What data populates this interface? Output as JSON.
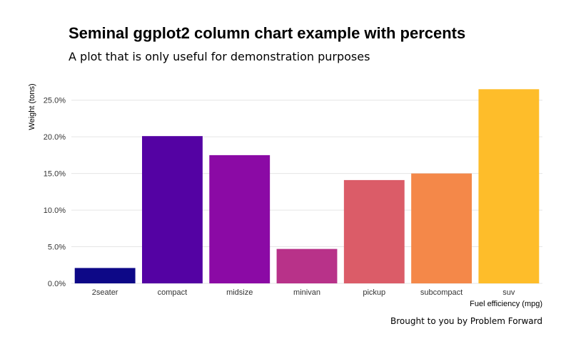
{
  "chart_data": {
    "type": "bar",
    "title": "Seminal ggplot2 column chart example with percents",
    "subtitle": "A plot that is only useful for demonstration purposes",
    "caption": "Brought to you by Problem Forward",
    "xlabel": "Fuel efficiency (mpg)",
    "ylabel": "Weight (tons)",
    "categories": [
      "2seater",
      "compact",
      "midsize",
      "minivan",
      "pickup",
      "subcompact",
      "suv"
    ],
    "values": [
      2.1,
      20.1,
      17.5,
      4.7,
      14.1,
      15.0,
      26.5
    ],
    "ylim": [
      0,
      27.5
    ],
    "yticks": [
      0,
      5,
      10,
      15,
      20,
      25
    ],
    "ytick_labels": [
      "0.0%",
      "5.0%",
      "10.0%",
      "15.0%",
      "20.0%",
      "25.0%"
    ],
    "colors": [
      "#0d0887",
      "#5402a3",
      "#8b0aa5",
      "#b83289",
      "#db5c68",
      "#f48849",
      "#febd2a"
    ],
    "grid": true,
    "legend": "none"
  }
}
